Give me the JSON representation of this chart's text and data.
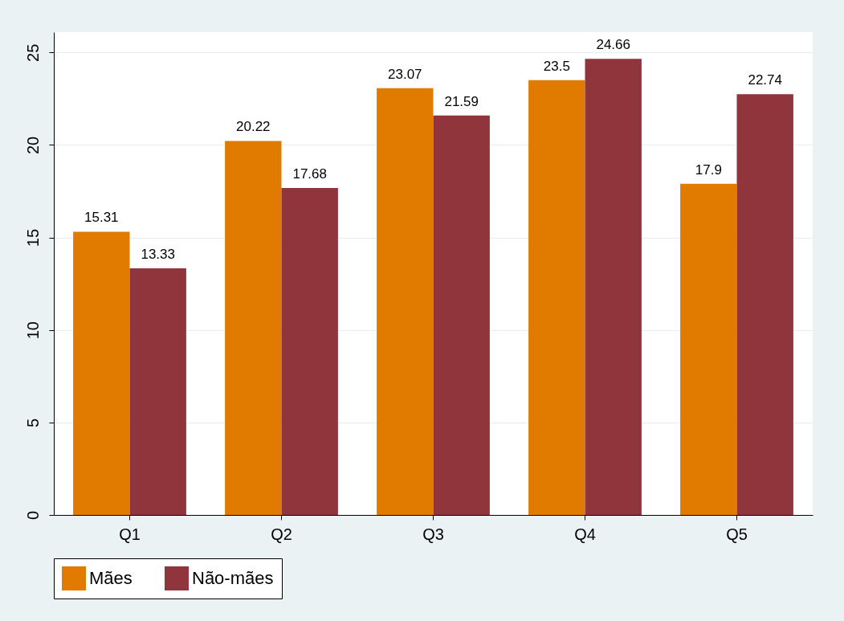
{
  "chart_data": {
    "type": "bar",
    "categories": [
      "Q1",
      "Q2",
      "Q3",
      "Q4",
      "Q5"
    ],
    "series": [
      {
        "name": "Mães",
        "color": "#e07b00",
        "values": [
          15.31,
          20.22,
          23.07,
          23.5,
          17.9
        ]
      },
      {
        "name": "Não-mães",
        "color": "#90353b",
        "values": [
          13.33,
          17.68,
          21.59,
          24.66,
          22.74
        ]
      }
    ],
    "ylim": [
      0,
      26.1
    ],
    "yticks": [
      0,
      5,
      10,
      15,
      20,
      25
    ],
    "grid": "y",
    "legend": "bottom",
    "data_labels": true
  }
}
